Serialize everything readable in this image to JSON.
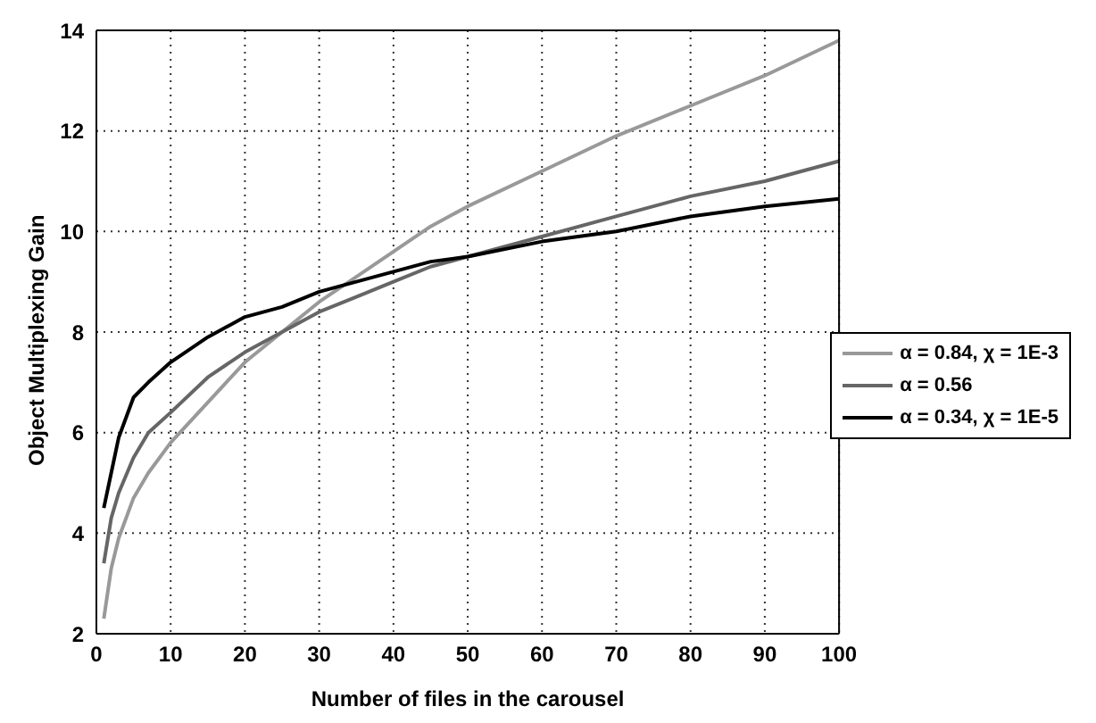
{
  "chart_data": {
    "type": "line",
    "xlabel": "Number of files in the carousel",
    "ylabel": "Object Multiplexing Gain",
    "x": [
      1,
      2,
      3,
      5,
      7,
      10,
      15,
      20,
      25,
      30,
      35,
      40,
      45,
      50,
      60,
      70,
      80,
      90,
      100
    ],
    "series": [
      {
        "name": "α = 0.84, χ = 1E-3",
        "color": "#999999",
        "values": [
          2.3,
          3.3,
          3.9,
          4.7,
          5.2,
          5.8,
          6.6,
          7.4,
          8.0,
          8.6,
          9.1,
          9.6,
          10.1,
          10.5,
          11.2,
          11.9,
          12.5,
          13.1,
          13.8
        ]
      },
      {
        "name": "α = 0.56",
        "color": "#666666",
        "values": [
          3.4,
          4.3,
          4.8,
          5.5,
          6.0,
          6.4,
          7.1,
          7.6,
          8.0,
          8.4,
          8.7,
          9.0,
          9.3,
          9.5,
          9.9,
          10.3,
          10.7,
          11.0,
          11.4
        ]
      },
      {
        "name": "α = 0.34, χ = 1E-5",
        "color": "#000000",
        "values": [
          4.5,
          5.2,
          5.9,
          6.7,
          7.0,
          7.4,
          7.9,
          8.3,
          8.5,
          8.8,
          9.0,
          9.2,
          9.4,
          9.5,
          9.8,
          10.0,
          10.3,
          10.5,
          10.65
        ]
      }
    ],
    "xlim": [
      0,
      100
    ],
    "xticks": [
      0,
      10,
      20,
      30,
      40,
      50,
      60,
      70,
      80,
      90,
      100
    ],
    "ylim": [
      2,
      14
    ],
    "yticks": [
      2,
      4,
      6,
      8,
      10,
      12,
      14
    ],
    "grid": true,
    "legend": "right",
    "marker": "none",
    "line_style": "solid"
  }
}
